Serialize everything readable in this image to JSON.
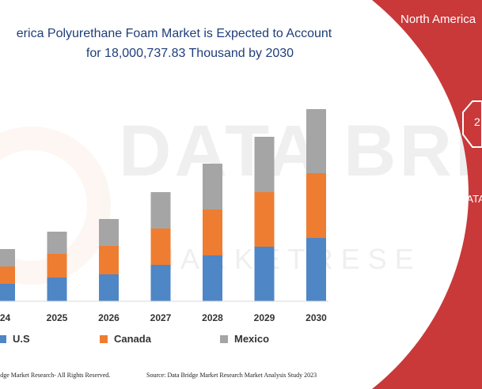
{
  "chart_data": {
    "type": "bar",
    "stacked": true,
    "title": "erica Polyurethane Foam Market is Expected to Account for 18,000,737.83 Thousand by 2030",
    "title_line1": "erica Polyurethane Foam Market is Expected to Account",
    "title_line2": "for 18,000,737.83 Thousand by 2030",
    "categories": [
      "24",
      "2025",
      "2026",
      "2027",
      "2028",
      "2029",
      "2030"
    ],
    "series": [
      {
        "name": "U.S",
        "color": "#4e86c6",
        "values": [
          22,
          30,
          34,
          46,
          58,
          69,
          80
        ]
      },
      {
        "name": "Canada",
        "color": "#ee7d31",
        "values": [
          22,
          30,
          36,
          46,
          58,
          69,
          82
        ]
      },
      {
        "name": "Mexico",
        "color": "#a5a5a5",
        "values": [
          22,
          28,
          34,
          46,
          58,
          70,
          81
        ]
      }
    ],
    "ylim": [
      0,
      250
    ],
    "grid": false,
    "legend": "bottom"
  },
  "legend": [
    {
      "label": "U.S",
      "color": "#4e86c6"
    },
    {
      "label": "Canada",
      "color": "#ee7d31"
    },
    {
      "label": "Mexico",
      "color": "#a5a5a5"
    }
  ],
  "footer": {
    "left": "idge Market Research- All Rights Reserved.",
    "right": "Source: Data Bridge Market Research Market Analysis Study 2023"
  },
  "panel": {
    "title": "North America",
    "badge": "2",
    "subtitle": "DATA",
    "color": "#c9393a"
  },
  "watermark": {
    "line1": "DATA BRID",
    "line2": "M A R K E T   R E S E"
  }
}
